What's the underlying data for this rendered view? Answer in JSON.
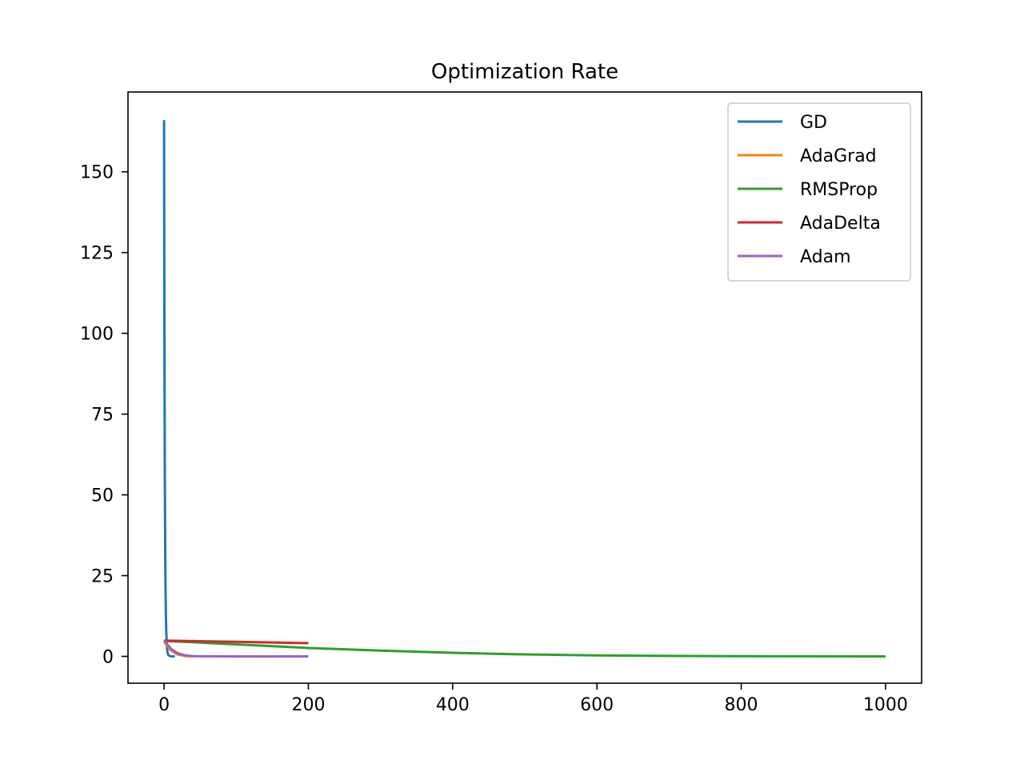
{
  "chart_data": {
    "type": "line",
    "title": "Optimization Rate",
    "xlabel": "",
    "ylabel": "",
    "xlim": [
      -50,
      1050
    ],
    "ylim": [
      -8.3,
      174.7
    ],
    "xticks": [
      0,
      200,
      400,
      600,
      800,
      1000
    ],
    "yticks": [
      0,
      25,
      50,
      75,
      100,
      125,
      150
    ],
    "grid": false,
    "legend_position": "upper right",
    "series": [
      {
        "name": "GD",
        "color": "#1f77b4",
        "x": [
          0,
          0.5,
          1,
          1.5,
          2,
          2.5,
          3,
          4,
          5,
          6,
          8,
          10,
          15
        ],
        "y": [
          166,
          100,
          60,
          36,
          21.5,
          13,
          7.8,
          2.8,
          1.0,
          0.4,
          0.1,
          0.02,
          0
        ]
      },
      {
        "name": "AdaGrad",
        "color": "#ff7f0e",
        "x": [
          0,
          5,
          10,
          15,
          20,
          30,
          40
        ],
        "y": [
          4.6,
          3.0,
          1.8,
          1.0,
          0.5,
          0.1,
          0
        ]
      },
      {
        "name": "RMSProp",
        "color": "#2ca02c",
        "x": [
          0,
          100,
          200,
          300,
          400,
          500,
          600,
          700,
          800,
          900,
          1000
        ],
        "y": [
          4.8,
          3.7,
          2.6,
          1.8,
          1.1,
          0.6,
          0.3,
          0.15,
          0.05,
          0.02,
          0
        ]
      },
      {
        "name": "AdaDelta",
        "color": "#d62728",
        "x": [
          0,
          50,
          100,
          150,
          200
        ],
        "y": [
          4.9,
          4.7,
          4.5,
          4.3,
          4.1
        ]
      },
      {
        "name": "Adam",
        "color": "#9467bd",
        "x": [
          0,
          5,
          10,
          15,
          20,
          30,
          40,
          50,
          100,
          200
        ],
        "y": [
          5.0,
          3.5,
          2.3,
          1.5,
          0.9,
          0.3,
          0.08,
          0.02,
          0,
          0
        ]
      }
    ]
  }
}
